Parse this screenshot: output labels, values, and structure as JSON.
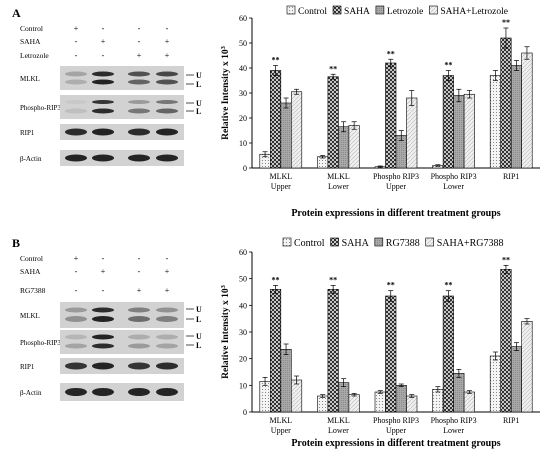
{
  "panelA": {
    "letter": "A",
    "blot": {
      "treatment_labels": [
        "Control",
        "SAHA",
        "Letrozole"
      ],
      "signs": [
        [
          "+",
          "-",
          "-",
          "-"
        ],
        [
          "-",
          "+",
          "-",
          "+"
        ],
        [
          "-",
          "-",
          "+",
          "+"
        ]
      ],
      "protein_labels": [
        "MLKL",
        "Phospho-RIP3",
        "RIP1",
        "β-Actin"
      ],
      "band_markers": [
        "U",
        "L",
        "U",
        "L"
      ]
    }
  },
  "panelB": {
    "letter": "B",
    "blot": {
      "treatment_labels": [
        "Control",
        "SAHA",
        "RG7388"
      ],
      "signs": [
        [
          "+",
          "-",
          "-",
          "-"
        ],
        [
          "-",
          "+",
          "-",
          "+"
        ],
        [
          "-",
          "-",
          "+",
          "+"
        ]
      ],
      "protein_labels": [
        "MLKL",
        "Phospho-RIP3",
        "RIP1",
        "β-Actin"
      ],
      "band_markers": [
        "U",
        "L",
        "U",
        "L"
      ]
    }
  },
  "colors": {
    "control": "#dcdcdc",
    "saha": "#555555",
    "treatment2": "#a8a8a8",
    "combo": "#f2f2f2",
    "axis": "#000000",
    "blot_bg": "#d2d2d2",
    "band": "#1a1a1a"
  },
  "chart_data": [
    {
      "type": "bar",
      "title": "",
      "xlabel": "Protein expressions in different treatment groups",
      "ylabel": "Relative Intensity x 10",
      "ylabel_sup": "3",
      "ylim": [
        0,
        60
      ],
      "yticks": [
        0,
        10,
        20,
        30,
        40,
        50,
        60
      ],
      "legend_position": "top",
      "categories": [
        "MLKL\nUpper",
        "MLKL\nLower",
        "Phospho RIP3\nUpper",
        "Phospho RIP3\nLower",
        "RIP1"
      ],
      "series": [
        {
          "name": "Control",
          "values": [
            5.5,
            4.5,
            0.5,
            1,
            37
          ],
          "errors": [
            1,
            0.5,
            0.3,
            0.3,
            2
          ]
        },
        {
          "name": "SAHA",
          "values": [
            39,
            36.5,
            42,
            37,
            52
          ],
          "errors": [
            2,
            1,
            1.5,
            2,
            4
          ]
        },
        {
          "name": "Letrozole",
          "values": [
            26,
            16.5,
            13,
            29,
            41
          ],
          "errors": [
            2,
            2,
            2,
            2.5,
            2
          ]
        },
        {
          "name": "SAHA+Letrozole",
          "values": [
            30.5,
            17,
            28,
            29.5,
            46
          ],
          "errors": [
            1,
            1.5,
            3,
            1.5,
            2.5
          ]
        }
      ],
      "significance": [
        "**",
        "**",
        "**",
        "**",
        "**"
      ]
    },
    {
      "type": "bar",
      "title": "",
      "xlabel": "Protein expressions in different treatment groups",
      "ylabel": "Relative Intensity x 10",
      "ylabel_sup": "3",
      "ylim": [
        0,
        60
      ],
      "yticks": [
        0,
        10,
        20,
        30,
        40,
        50,
        60
      ],
      "legend_position": "top",
      "categories": [
        "MLKL\nUpper",
        "MLKL\nLower",
        "Phospho RIP3\nUpper",
        "Phospho RIP3\nLower",
        "RIP1"
      ],
      "series": [
        {
          "name": "Control",
          "values": [
            11.5,
            6,
            7.5,
            8.5,
            21
          ],
          "errors": [
            1.5,
            0.5,
            0.5,
            1,
            1.5
          ]
        },
        {
          "name": "SAHA",
          "values": [
            46,
            46,
            43.5,
            43.5,
            53.5
          ],
          "errors": [
            1.5,
            1.5,
            2,
            2,
            1.5
          ]
        },
        {
          "name": "RG7388",
          "values": [
            23.5,
            11,
            10,
            14.5,
            24.5
          ],
          "errors": [
            2,
            1.5,
            0.5,
            1.5,
            1.5
          ]
        },
        {
          "name": "SAHA+RG7388",
          "values": [
            12,
            6.5,
            6,
            7.5,
            34
          ],
          "errors": [
            1.5,
            0.5,
            0.5,
            0.5,
            1
          ]
        }
      ],
      "significance": [
        "**",
        "**",
        "**",
        "**",
        "**"
      ]
    }
  ]
}
